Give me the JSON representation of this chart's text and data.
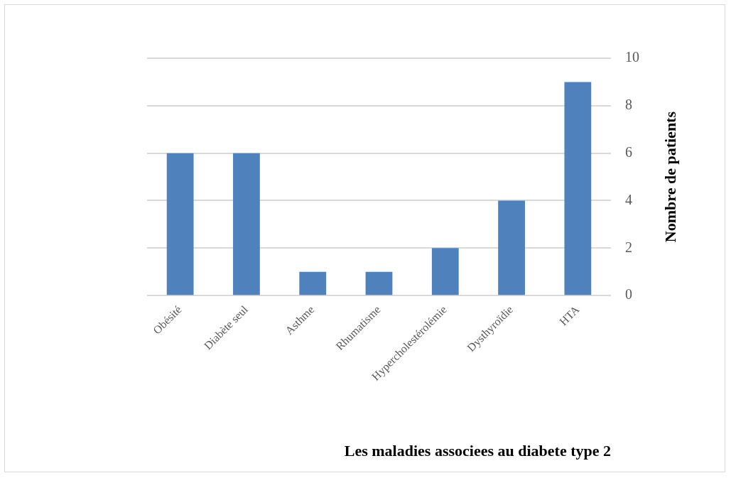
{
  "chart_data": {
    "type": "bar",
    "xlabel": "Les maladies associees au diabete type 2",
    "ylabel": "Nombre de patients",
    "categories": [
      "Obésité",
      "Diabète seul",
      "Asthme",
      "Rhumatisme",
      "Hypercholestérolémie",
      "Dysthyroïdie",
      "HTA"
    ],
    "values": [
      6,
      6,
      1,
      1,
      2,
      4,
      9
    ],
    "color": "#4f81bd",
    "ylim": [
      0,
      10
    ],
    "yticks": [
      0,
      2,
      4,
      6,
      8,
      10
    ],
    "grid": "y",
    "legend": false
  }
}
